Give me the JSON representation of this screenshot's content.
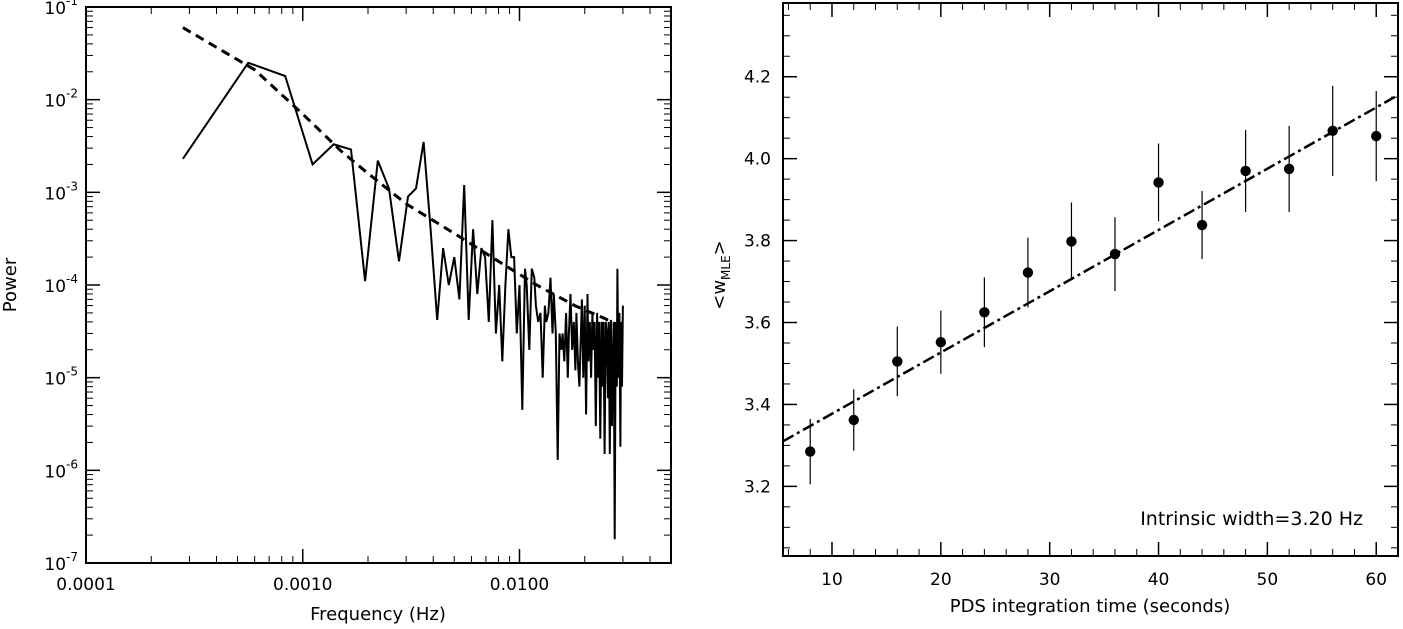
{
  "chart_data": [
    {
      "type": "line",
      "xlabel": "Frequency (Hz)",
      "ylabel": "Power",
      "xscale": "log",
      "yscale": "log",
      "xlim": [
        0.0001,
        0.05
      ],
      "ylim": [
        1e-07,
        0.1
      ],
      "xticks": [
        "0.0001",
        "0.0010",
        "0.0100"
      ],
      "yticks": [
        {
          "base": "10",
          "exp": "-1"
        },
        {
          "base": "10",
          "exp": "-2"
        },
        {
          "base": "10",
          "exp": "-3"
        },
        {
          "base": "10",
          "exp": "-4"
        },
        {
          "base": "10",
          "exp": "-5"
        },
        {
          "base": "10",
          "exp": "-6"
        },
        {
          "base": "10",
          "exp": "-7"
        }
      ],
      "series": [
        {
          "style": "solid",
          "x": [
            0.00028,
            0.00056,
            0.00083,
            0.00111,
            0.00139,
            0.00167,
            0.00194,
            0.00222,
            0.0025,
            0.00278,
            0.00306,
            0.00333,
            0.00361,
            0.00389,
            0.00417,
            0.00444,
            0.00472,
            0.005,
            0.00528,
            0.00556,
            0.00583,
            0.00611,
            0.00639,
            0.00667,
            0.00694,
            0.00722,
            0.0075,
            0.00778,
            0.00806,
            0.00833,
            0.00861,
            0.00889,
            0.00917,
            0.00944,
            0.00972,
            0.01,
            0.0103,
            0.0106,
            0.0108,
            0.0111,
            0.0114,
            0.0117,
            0.0119,
            0.0122,
            0.0125,
            0.0128,
            0.0131,
            0.0133,
            0.0136,
            0.0139,
            0.0142,
            0.0144,
            0.0147,
            0.015,
            0.0153,
            0.0156,
            0.0158,
            0.0161,
            0.0164,
            0.0167,
            0.0169,
            0.0172,
            0.0175,
            0.0178,
            0.0181,
            0.0183,
            0.0186,
            0.0189,
            0.0192,
            0.0194,
            0.0197,
            0.02,
            0.0203,
            0.0206,
            0.0208,
            0.0211,
            0.0214,
            0.0217,
            0.0219,
            0.0222,
            0.0225,
            0.0228,
            0.0231,
            0.0233,
            0.0236,
            0.0239,
            0.0242,
            0.0244,
            0.0247,
            0.025,
            0.0253,
            0.0256,
            0.0258,
            0.0261,
            0.0264,
            0.0267,
            0.0269,
            0.0272,
            0.0275,
            0.0278,
            0.0281,
            0.0283,
            0.0286,
            0.0289,
            0.0292,
            0.0294,
            0.0297,
            0.03
          ],
          "y": [
            0.0023,
            0.025,
            0.018,
            0.002,
            0.0033,
            0.0029,
            0.00011,
            0.0022,
            0.0011,
            0.00018,
            0.0009,
            0.0011,
            0.0035,
            0.0004,
            4.2e-05,
            0.00025,
            0.0001,
            0.0002,
            7e-05,
            0.0012,
            4.2e-05,
            0.0004,
            8e-05,
            0.00025,
            0.0002,
            4e-05,
            0.0005,
            3e-05,
            0.0001,
            1.5e-05,
            0.0001,
            0.0004,
            0.0002,
            0.0002,
            3e-05,
            0.0001,
            4.5e-06,
            0.00015,
            0.0001,
            2e-05,
            0.00015,
            0.00012,
            6e-05,
            4e-05,
            5e-05,
            1e-05,
            6e-05,
            4e-05,
            5e-05,
            0.00012,
            3e-05,
            8e-05,
            3e-05,
            1.3e-06,
            3e-05,
            2e-05,
            3e-05,
            1.5e-05,
            5e-05,
            1e-05,
            3e-05,
            8e-05,
            2e-05,
            4e-05,
            1.2e-05,
            5e-05,
            1.5e-05,
            8e-06,
            3e-05,
            7e-05,
            1e-05,
            6e-05,
            4e-06,
            8e-05,
            1.5e-05,
            4e-05,
            1e-05,
            5e-05,
            2e-05,
            4e-05,
            3e-06,
            5e-05,
            1e-05,
            4e-05,
            2.2e-06,
            4e-05,
            8e-06,
            4e-05,
            1.5e-06,
            4e-05,
            3e-05,
            6e-06,
            4e-05,
            1.5e-06,
            4.2e-05,
            3e-06,
            1.2e-05,
            4e-05,
            1.8e-07,
            4e-05,
            8e-06,
            0.00015,
            1e-05,
            5e-05,
            1.8e-06,
            4e-05,
            8e-06,
            6e-05
          ]
        },
        {
          "style": "dashed",
          "x": [
            0.00028,
            0.0006,
            0.001,
            0.0015,
            0.002,
            0.003,
            0.005,
            0.008,
            0.012,
            0.018,
            0.025,
            0.03
          ],
          "y": [
            0.06,
            0.021,
            0.007,
            0.0028,
            0.0016,
            0.00075,
            0.00036,
            0.00018,
            0.0001,
            6e-05,
            4.3e-05,
            3.3e-05
          ]
        }
      ],
      "grid": false
    },
    {
      "type": "scatter",
      "xlabel": "PDS integration time (seconds)",
      "ylabel": {
        "main": "<w",
        "sub": "MLE",
        "close": ">"
      },
      "xlim": [
        5.5,
        62
      ],
      "ylim": [
        3.03,
        4.38
      ],
      "xticks": [
        10,
        20,
        30,
        40,
        50,
        60
      ],
      "yticks": [
        "3.2",
        "3.4",
        "3.6",
        "3.8",
        "4.0",
        "4.2"
      ],
      "yticks_values": [
        3.2,
        3.4,
        3.6,
        3.8,
        4.0,
        4.2
      ],
      "annotation": "Intrinsic width=3.20 Hz",
      "points": [
        {
          "x": 8,
          "y": 3.285,
          "err": 0.08
        },
        {
          "x": 12,
          "y": 3.362,
          "err": 0.075
        },
        {
          "x": 16,
          "y": 3.505,
          "err": 0.085
        },
        {
          "x": 20,
          "y": 3.552,
          "err": 0.077
        },
        {
          "x": 24,
          "y": 3.625,
          "err": 0.085
        },
        {
          "x": 28,
          "y": 3.722,
          "err": 0.085
        },
        {
          "x": 32,
          "y": 3.798,
          "err": 0.095
        },
        {
          "x": 36,
          "y": 3.767,
          "err": 0.09
        },
        {
          "x": 40,
          "y": 3.942,
          "err": 0.095
        },
        {
          "x": 44,
          "y": 3.838,
          "err": 0.083
        },
        {
          "x": 48,
          "y": 3.97,
          "err": 0.1
        },
        {
          "x": 52,
          "y": 3.975,
          "err": 0.105
        },
        {
          "x": 56,
          "y": 4.068,
          "err": 0.11
        },
        {
          "x": 60,
          "y": 4.055,
          "err": 0.11
        }
      ],
      "fit_line": {
        "style": "dash-dot",
        "x": [
          5.5,
          62
        ],
        "y": [
          3.31,
          4.155
        ]
      },
      "grid": false
    }
  ]
}
